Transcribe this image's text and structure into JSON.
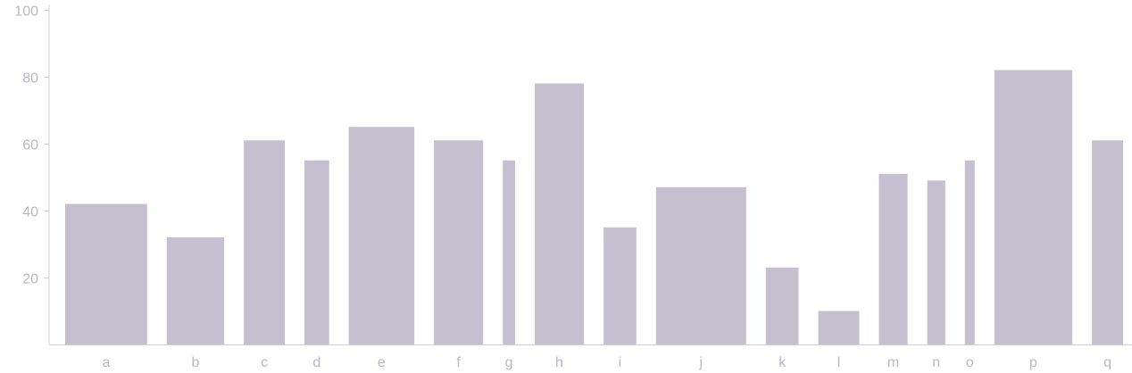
{
  "chart_data": {
    "type": "bar",
    "title": "",
    "xlabel": "",
    "ylabel": "",
    "ylim": [
      0,
      100
    ],
    "yticks": [
      20,
      40,
      60,
      80,
      100
    ],
    "grid": false,
    "legend": "none",
    "bar_color": "#c5bfcf",
    "variable_width": true,
    "categories": [
      "a",
      "b",
      "c",
      "d",
      "e",
      "f",
      "g",
      "h",
      "i",
      "j",
      "k",
      "l",
      "m",
      "n",
      "o",
      "p",
      "q"
    ],
    "values": [
      42,
      32,
      61,
      55,
      65,
      61,
      55,
      78,
      35,
      47,
      23,
      10,
      51,
      49,
      55,
      82,
      61
    ],
    "widths": [
      1.0,
      0.7,
      0.5,
      0.3,
      0.8,
      0.6,
      0.15,
      0.6,
      0.4,
      1.1,
      0.4,
      0.5,
      0.35,
      0.22,
      0.12,
      0.95,
      0.38
    ]
  }
}
